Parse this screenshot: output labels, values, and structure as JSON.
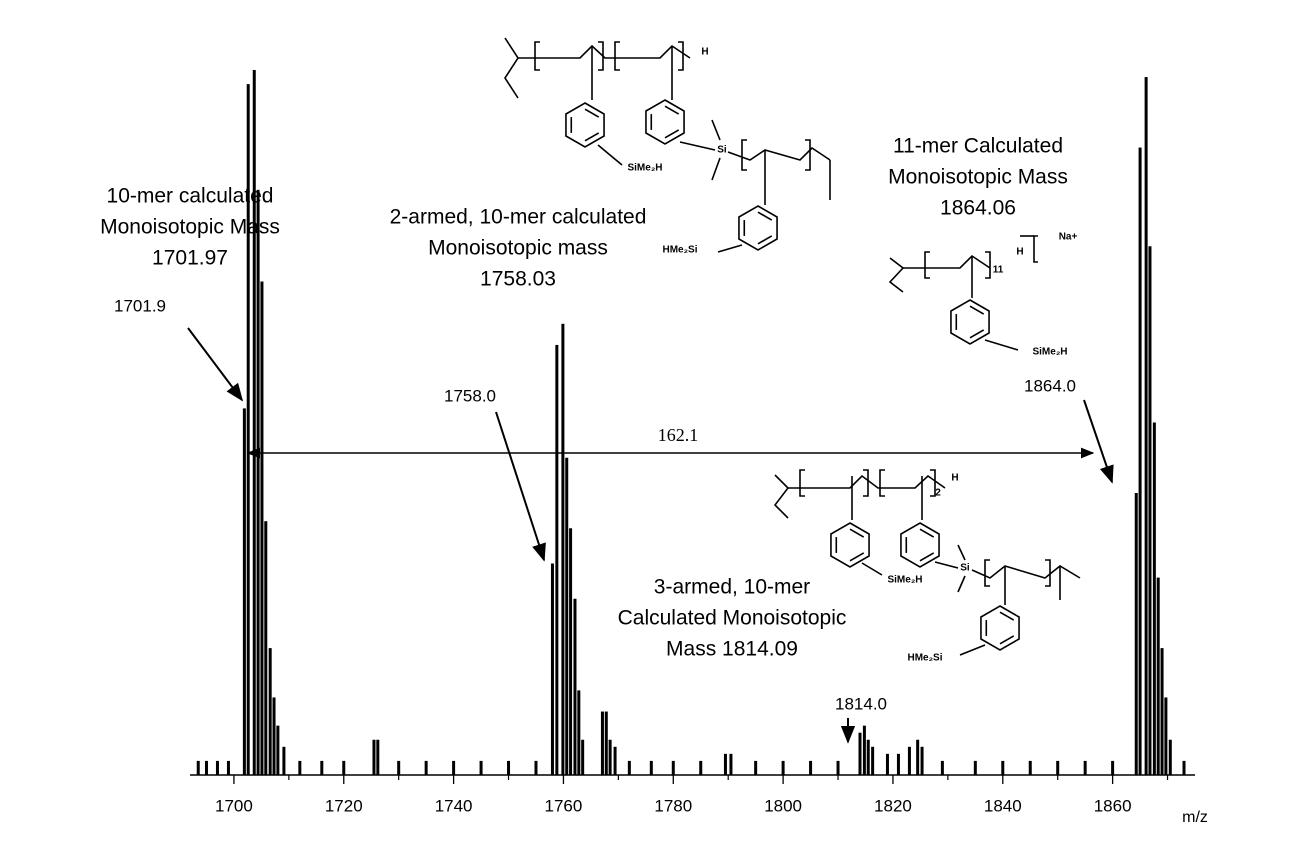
{
  "chart_data": {
    "type": "spectrum",
    "x": [
      1693.5,
      1695.0,
      1697.0,
      1699.0,
      1701.9,
      1702.6,
      1703.7,
      1704.4,
      1705.1,
      1705.8,
      1706.6,
      1707.3,
      1708.0,
      1709.1,
      1712.0,
      1716.0,
      1720.0,
      1725.5,
      1726.2,
      1730.0,
      1735.0,
      1740.0,
      1745.0,
      1750.0,
      1755.0,
      1758.0,
      1758.8,
      1759.9,
      1760.6,
      1761.3,
      1762.1,
      1762.8,
      1763.5,
      1767.1,
      1767.8,
      1768.5,
      1769.4,
      1772.0,
      1776.0,
      1780.0,
      1785.0,
      1789.5,
      1790.5,
      1795.0,
      1800.0,
      1805.0,
      1810.0,
      1814.0,
      1814.8,
      1815.5,
      1816.3,
      1819.0,
      1821.0,
      1823.0,
      1824.5,
      1825.3,
      1829.0,
      1835.0,
      1840.0,
      1845.0,
      1850.0,
      1855.0,
      1860.0,
      1864.3,
      1865.0,
      1866.1,
      1866.8,
      1867.6,
      1868.3,
      1869.0,
      1869.7,
      1870.5,
      1873.0
    ],
    "values": [
      2,
      2,
      2,
      2,
      52,
      98,
      100,
      83,
      70,
      36,
      18,
      11,
      7,
      4,
      2,
      2,
      2,
      5,
      5,
      2,
      2,
      2,
      2,
      2,
      2,
      30,
      61,
      64,
      45,
      35,
      25,
      12,
      5,
      9,
      9,
      5,
      4,
      2,
      2,
      2,
      2,
      3,
      3,
      2,
      2,
      2,
      2,
      6,
      7,
      5,
      4,
      3,
      3,
      4,
      5,
      4,
      2,
      2,
      2,
      2,
      2,
      2,
      2,
      40,
      89,
      99,
      75,
      50,
      28,
      18,
      11,
      5,
      2
    ],
    "color": "#000000",
    "xlim": [
      1692,
      1875
    ],
    "ylim": [
      0,
      100
    ],
    "xticks": [
      1700,
      1720,
      1740,
      1760,
      1780,
      1800,
      1820,
      1840,
      1860
    ],
    "xminorticks": [
      1710,
      1730,
      1750,
      1770,
      1790,
      1810,
      1830,
      1850,
      1870
    ],
    "xlabel": "m/z",
    "annotations": [
      {
        "lines": [
          "10-mer calculated",
          "Monoisotopic Mass",
          "1701.97"
        ]
      },
      {
        "lines": [
          "2-armed, 10-mer calculated",
          "Monoisotopic mass",
          "1758.03"
        ]
      },
      {
        "lines": [
          "11-mer Calculated",
          "Monoisotopic Mass",
          "1864.06"
        ]
      },
      {
        "lines": [
          "3-armed, 10-mer",
          "Calculated Monoisotopic",
          "Mass 1814.09"
        ]
      }
    ],
    "peak_labels": [
      "1701.9",
      "1758.0",
      "1864.0",
      "1814.0"
    ],
    "spacing_label": "162.1",
    "structures": [
      {
        "labels": [
          "H",
          "SiMe₂H",
          "Si",
          "HMe₂Si"
        ]
      },
      {
        "labels": [
          "Na+",
          "H",
          "11",
          "SiMe₂H"
        ]
      },
      {
        "labels": [
          "H",
          "2",
          "SiMe₂H",
          "Si",
          "HMe₂Si"
        ]
      }
    ]
  }
}
